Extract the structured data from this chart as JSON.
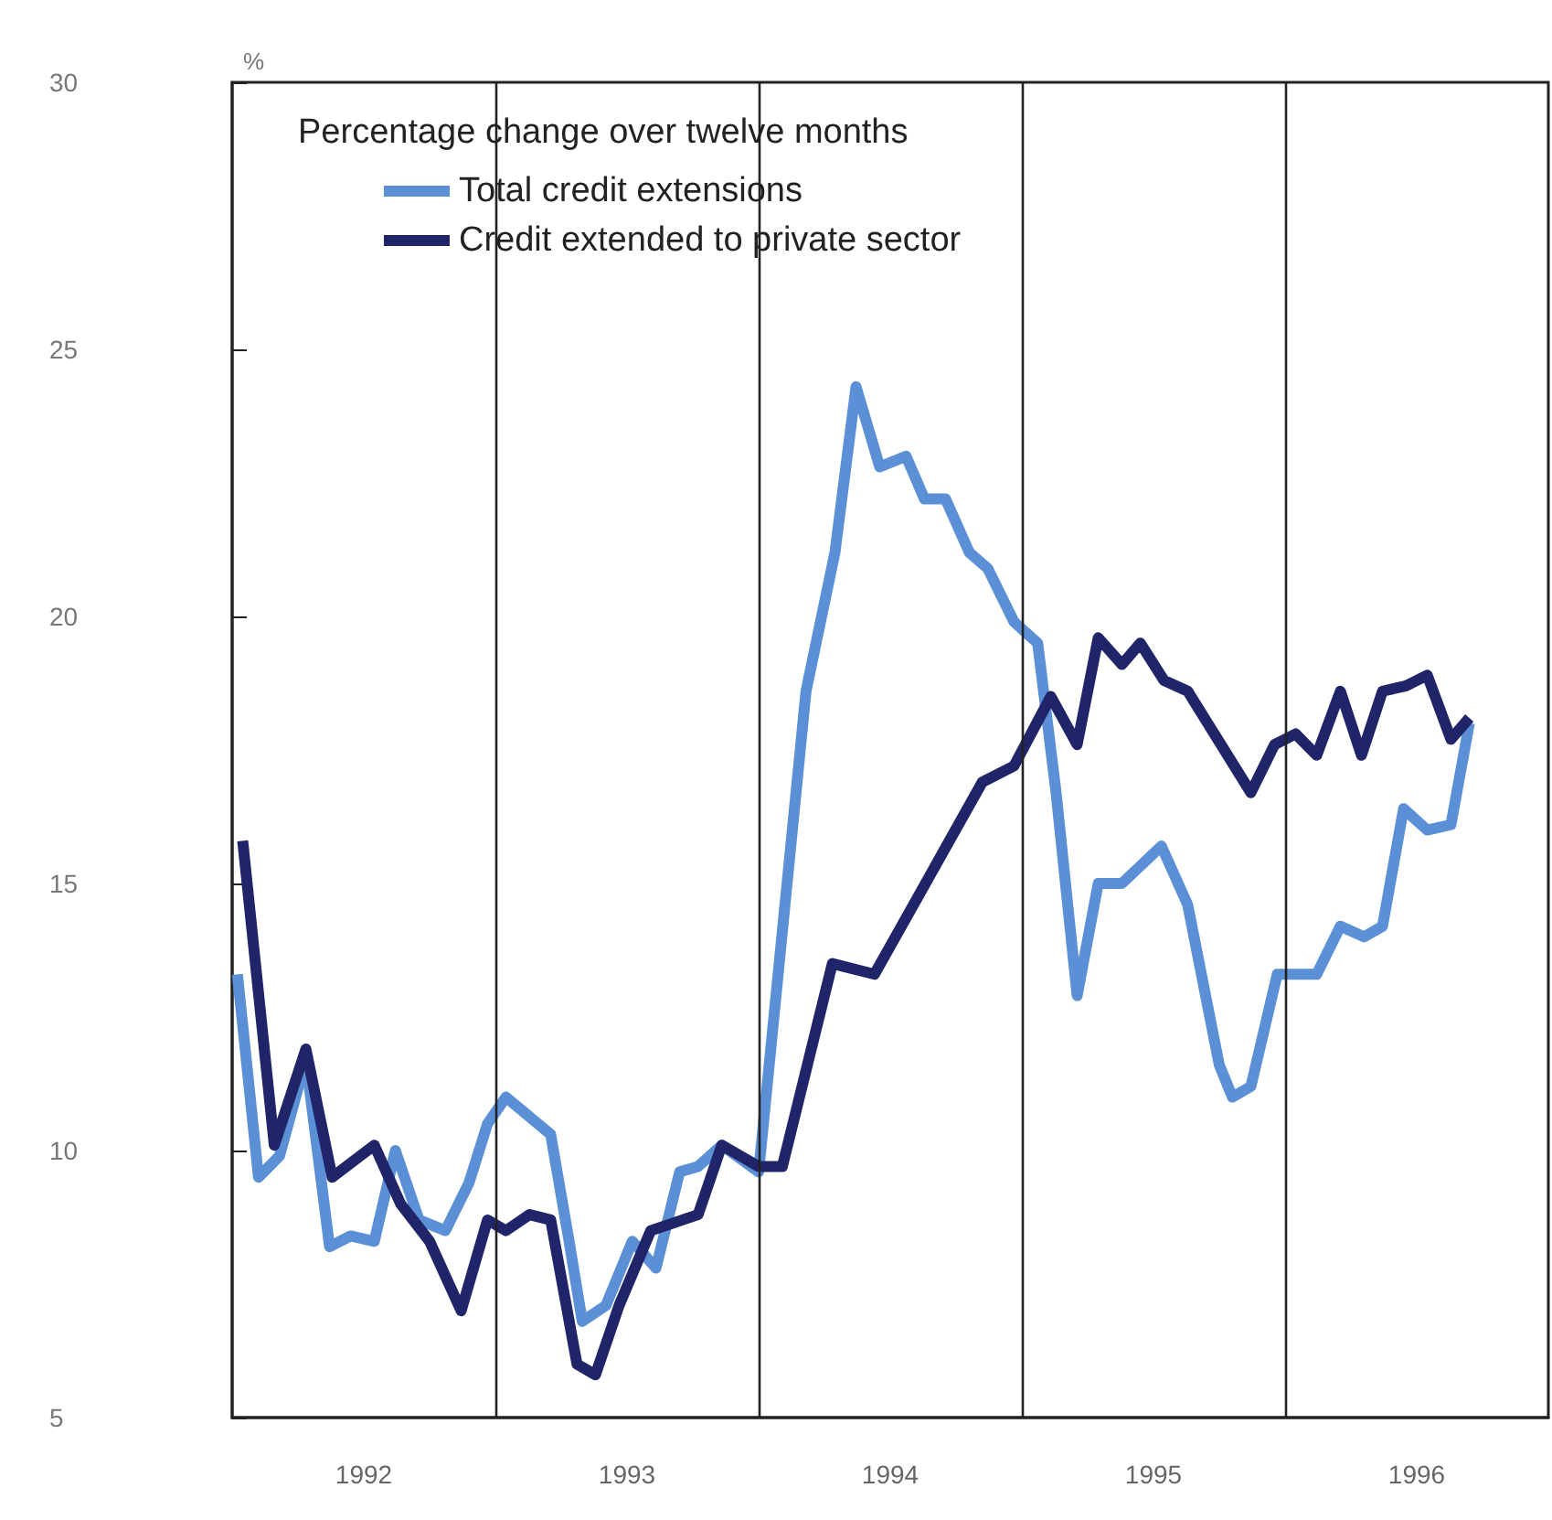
{
  "chart_data": {
    "type": "line",
    "ylabel": "%",
    "legend_title": "Percentage change over twelve months",
    "legend": "top left",
    "grid": false,
    "marker": "none",
    "line_style": "solid",
    "xlim": [
      1992,
      1997
    ],
    "xticks": [
      {
        "value": 1992.5,
        "label": "1992"
      },
      {
        "value": 1993.5,
        "label": "1993"
      },
      {
        "value": 1994.5,
        "label": "1994"
      },
      {
        "value": 1995.5,
        "label": "1995"
      },
      {
        "value": 1996.5,
        "label": "1996"
      }
    ],
    "ylim": [
      5,
      30
    ],
    "yticks": [
      5,
      10,
      15,
      20,
      25,
      30
    ],
    "ref_lines": [
      {
        "axis": "x",
        "value": 1993,
        "color": "#222222"
      },
      {
        "axis": "x",
        "value": 1994,
        "color": "#222222"
      },
      {
        "axis": "x",
        "value": 1995,
        "color": "#222222"
      },
      {
        "axis": "x",
        "value": 1996,
        "color": "#222222"
      }
    ],
    "series": [
      {
        "name": "Total credit extensions",
        "color": "#5b8fd6",
        "x": [
          1992.02,
          1992.1,
          1992.18,
          1992.28,
          1992.37,
          1992.45,
          1992.54,
          1992.62,
          1992.71,
          1992.81,
          1992.9,
          1992.97,
          1993.04,
          1993.21,
          1993.28,
          1993.33,
          1993.42,
          1993.52,
          1993.61,
          1993.7,
          1993.77,
          1993.86,
          1994.0,
          1994.18,
          1994.29,
          1994.37,
          1994.46,
          1994.56,
          1994.63,
          1994.71,
          1994.8,
          1994.87,
          1994.97,
          1995.06,
          1995.13,
          1995.21,
          1995.29,
          1995.38,
          1995.53,
          1995.63,
          1995.75,
          1995.8,
          1995.87,
          1995.97,
          1996.12,
          1996.21,
          1996.3,
          1996.37,
          1996.45,
          1996.54,
          1996.63,
          1996.7
        ],
        "values": [
          13.3,
          9.5,
          9.9,
          11.7,
          8.2,
          8.4,
          8.3,
          10.0,
          8.7,
          8.5,
          9.4,
          10.5,
          11.0,
          10.3,
          8.3,
          6.8,
          7.1,
          8.3,
          7.8,
          9.6,
          9.7,
          10.1,
          9.6,
          18.6,
          21.2,
          24.3,
          22.8,
          23.0,
          22.2,
          22.2,
          21.2,
          20.9,
          19.9,
          19.5,
          16.7,
          12.9,
          15.0,
          15.0,
          15.7,
          14.6,
          11.6,
          11.0,
          11.2,
          13.3,
          13.3,
          14.2,
          14.0,
          14.2,
          16.4,
          16.0,
          16.1,
          18.0
        ]
      },
      {
        "name": "Credit extended to private sector",
        "color": "#1f2568",
        "x": [
          1992.04,
          1992.16,
          1992.28,
          1992.38,
          1992.54,
          1992.64,
          1992.75,
          1992.87,
          1992.97,
          1993.04,
          1993.13,
          1993.21,
          1993.31,
          1993.38,
          1993.47,
          1993.59,
          1993.77,
          1993.86,
          1994.0,
          1994.09,
          1994.28,
          1994.44,
          1994.85,
          1994.97,
          1995.11,
          1995.21,
          1995.29,
          1995.38,
          1995.45,
          1995.54,
          1995.63,
          1995.87,
          1995.96,
          1996.04,
          1996.12,
          1996.21,
          1996.29,
          1996.37,
          1996.46,
          1996.54,
          1996.63,
          1996.7
        ],
        "values": [
          15.8,
          10.1,
          11.9,
          9.5,
          10.1,
          9.0,
          8.3,
          7.0,
          8.7,
          8.5,
          8.8,
          8.7,
          6.0,
          5.8,
          7.1,
          8.5,
          8.8,
          10.1,
          9.7,
          9.7,
          13.5,
          13.3,
          16.9,
          17.2,
          18.5,
          17.6,
          19.6,
          19.1,
          19.5,
          18.8,
          18.6,
          16.7,
          17.6,
          17.8,
          17.4,
          18.6,
          17.4,
          18.6,
          18.7,
          18.9,
          17.7,
          18.1
        ]
      }
    ]
  }
}
